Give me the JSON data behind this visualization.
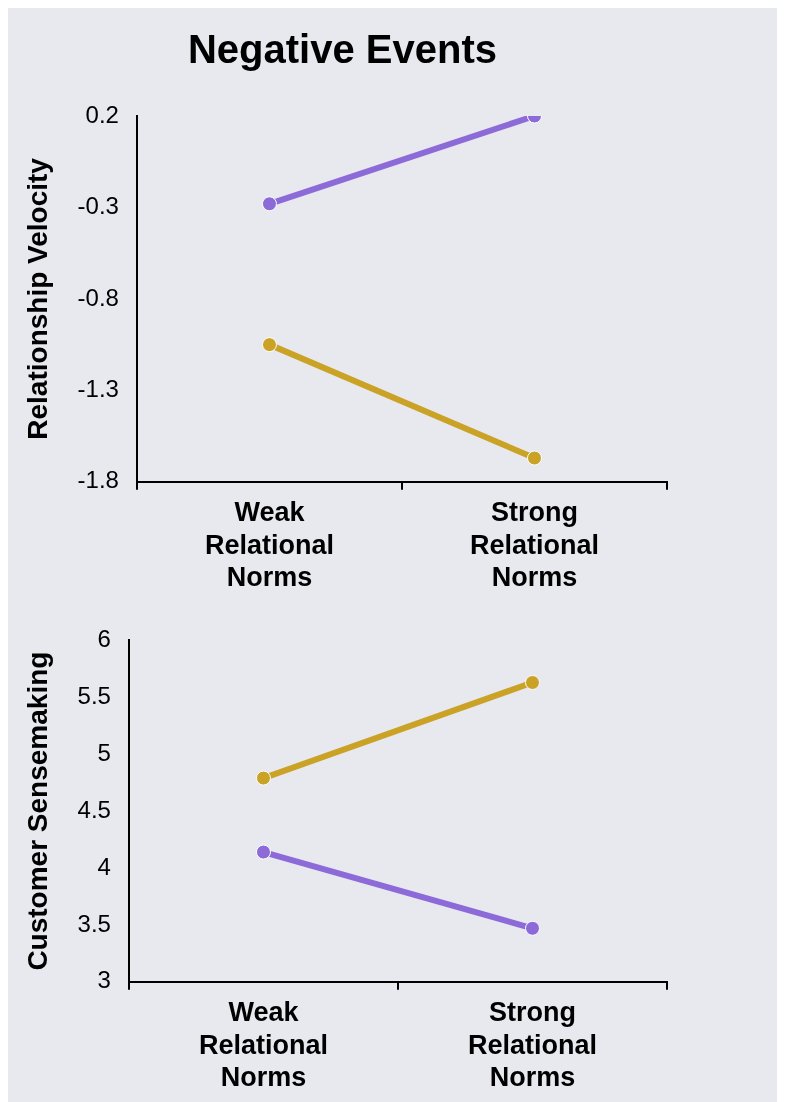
{
  "chart_data": [
    {
      "type": "line",
      "title": "Negative Events",
      "ylabel": "Relationship Velocity",
      "categories": [
        "Weak Relational Norms",
        "Strong Relational Norms"
      ],
      "marker": "circle",
      "ylim": [
        -1.8,
        0.2
      ],
      "yticks": [
        -1.8,
        -1.3,
        -0.8,
        -0.3,
        0.2
      ],
      "series": [
        {
          "color": "#8c6ad8",
          "values": [
            -0.28,
            0.2
          ]
        },
        {
          "color": "#c9a226",
          "values": [
            -1.05,
            -1.67
          ]
        }
      ]
    },
    {
      "type": "line",
      "ylabel": "Customer Sensemaking",
      "categories": [
        "Weak Relational Norms",
        "Strong Relational Norms"
      ],
      "marker": "circle",
      "ylim": [
        3,
        6
      ],
      "yticks": [
        3,
        3.5,
        4,
        4.5,
        5,
        5.5,
        6
      ],
      "series": [
        {
          "color": "#c9a226",
          "values": [
            4.79,
            5.63
          ]
        },
        {
          "color": "#8c6ad8",
          "values": [
            4.14,
            3.47
          ]
        }
      ]
    }
  ]
}
